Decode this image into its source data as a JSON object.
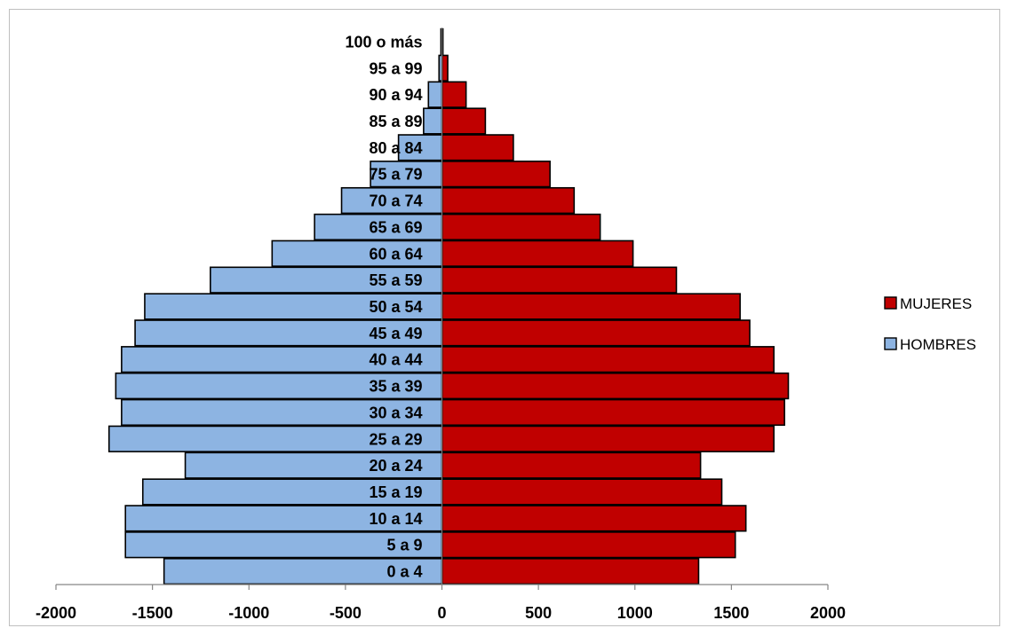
{
  "chart_data": {
    "type": "bar",
    "orientation": "horizontal",
    "stacked": "population-pyramid",
    "categories": [
      "0 a 4",
      "5 a 9",
      "10 a 14",
      "15 a 19",
      "20 a 24",
      "25 a 29",
      "30 a 34",
      "35 a 39",
      "40 a 44",
      "45 a 49",
      "50 a 54",
      "55 a 59",
      "60 a 64",
      "65 a 69",
      "70 a 74",
      "75 a 79",
      "80 a 84",
      "85 a 89",
      "90 a 94",
      "95 a 99",
      "100 o más"
    ],
    "series": [
      {
        "name": "MUJERES",
        "color": "#c00000",
        "values": [
          1330,
          1520,
          1575,
          1450,
          1340,
          1720,
          1775,
          1795,
          1720,
          1595,
          1545,
          1215,
          990,
          820,
          685,
          560,
          370,
          225,
          125,
          30,
          5
        ]
      },
      {
        "name": "HOMBRES",
        "color": "#8db4e2",
        "values": [
          -1440,
          -1640,
          -1640,
          -1550,
          -1330,
          -1725,
          -1660,
          -1690,
          -1660,
          -1590,
          -1540,
          -1200,
          -880,
          -660,
          -520,
          -370,
          -225,
          -95,
          -70,
          -15,
          -5
        ]
      }
    ],
    "xlim": [
      -2000,
      2000
    ],
    "xticks": [
      -2000,
      -1500,
      -1000,
      -500,
      0,
      500,
      1000,
      1500,
      2000
    ],
    "title": "",
    "xlabel": "",
    "ylabel": "",
    "grid": false,
    "legend": "right"
  }
}
